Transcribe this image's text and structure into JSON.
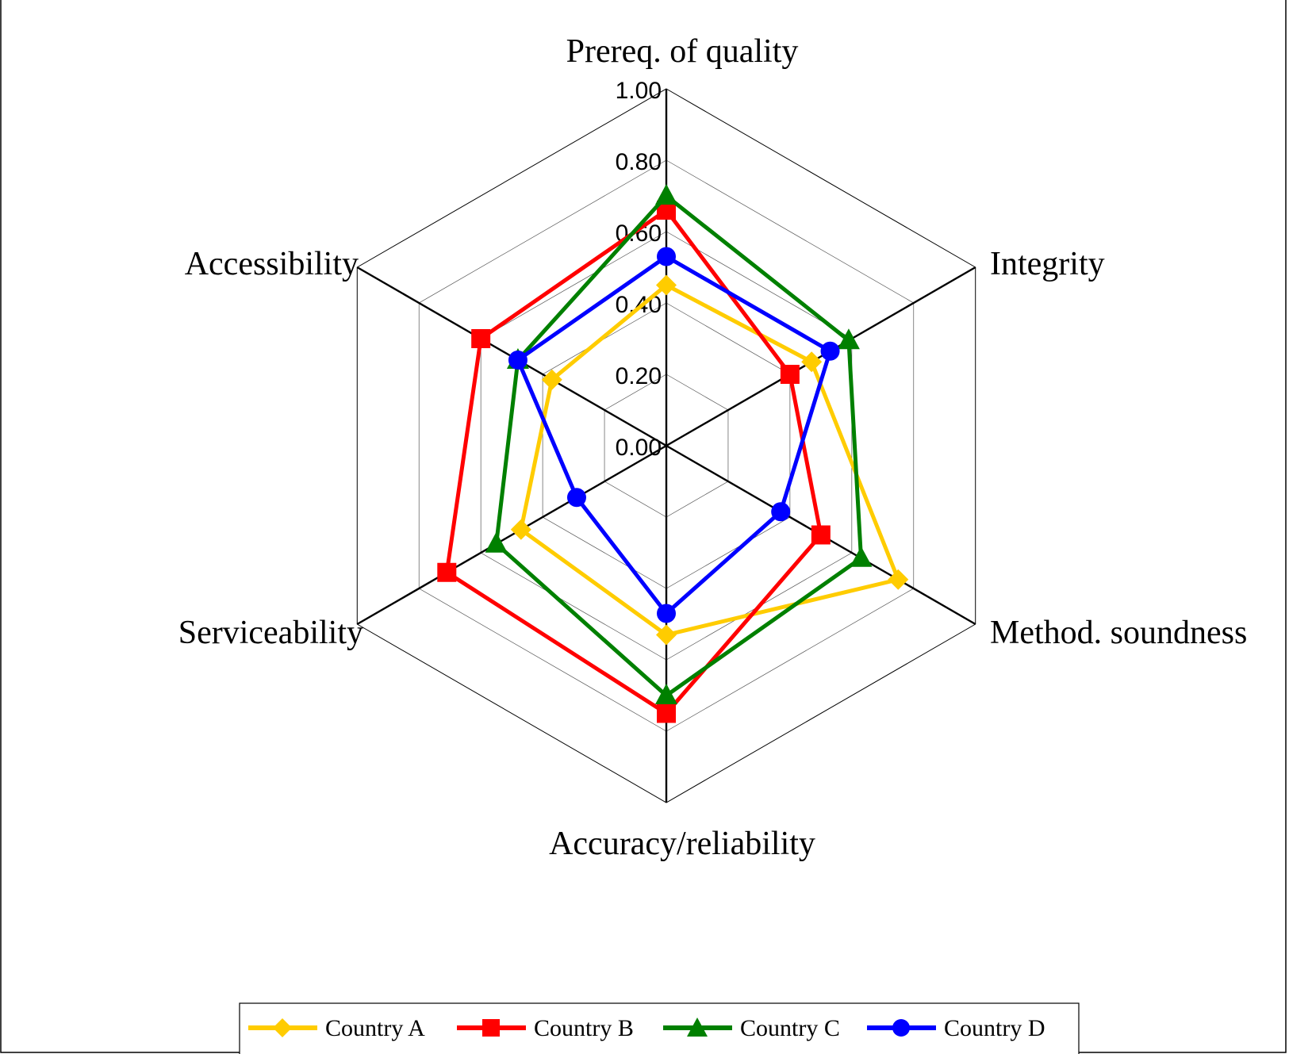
{
  "chart_data": {
    "type": "radar",
    "axes": [
      "Prereq. of quality",
      "Integrity",
      "Method. soundness",
      "Accuracy/reliability",
      "Serviceability",
      "Accessibility"
    ],
    "range": [
      0,
      1
    ],
    "ticks": [
      "0.00",
      "0.20",
      "0.40",
      "0.60",
      "0.80",
      "1.00"
    ],
    "tick_values": [
      0,
      0.2,
      0.4,
      0.6,
      0.8,
      1.0
    ],
    "grid": true,
    "legend_position": "bottom",
    "series": [
      {
        "name": "Country A",
        "color": "#FFCC00",
        "marker": "diamond",
        "values": [
          0.45,
          0.47,
          0.75,
          0.53,
          0.47,
          0.37
        ]
      },
      {
        "name": "Country B",
        "color": "#FF0000",
        "marker": "square",
        "values": [
          0.66,
          0.4,
          0.5,
          0.75,
          0.71,
          0.6
        ]
      },
      {
        "name": "Country C",
        "color": "#008000",
        "marker": "triangle",
        "values": [
          0.7,
          0.59,
          0.63,
          0.7,
          0.55,
          0.48
        ]
      },
      {
        "name": "Country D",
        "color": "#0000FF",
        "marker": "circle",
        "values": [
          0.53,
          0.53,
          0.37,
          0.47,
          0.29,
          0.48
        ]
      }
    ]
  },
  "legend": {
    "items": [
      "Country A",
      "Country B",
      "Country C",
      "Country D"
    ]
  }
}
